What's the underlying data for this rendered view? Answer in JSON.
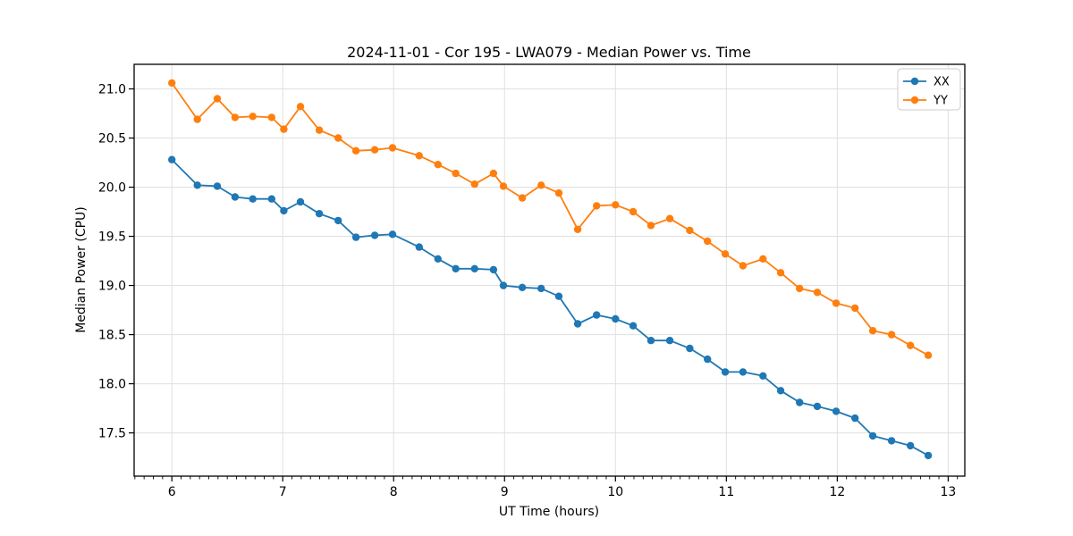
{
  "chart_data": {
    "type": "line",
    "title": "2024-11-01 - Cor 195 - LWA079 - Median Power vs. Time",
    "xlabel": "UT Time (hours)",
    "ylabel": "Median Power (CPU)",
    "xlim": [
      5.66,
      13.15
    ],
    "ylim": [
      17.06,
      21.25
    ],
    "xticks": [
      6,
      7,
      8,
      9,
      10,
      11,
      12,
      13
    ],
    "yticks": [
      17.5,
      18.0,
      18.5,
      19.0,
      19.5,
      20.0,
      20.5,
      21.0
    ],
    "x_minor_tick_step": 0.08333,
    "grid": true,
    "grid_color": "#e0e0e0",
    "legend_position": "upper right",
    "x": [
      6.0,
      6.23,
      6.41,
      6.57,
      6.73,
      6.9,
      7.01,
      7.16,
      7.33,
      7.5,
      7.66,
      7.83,
      7.99,
      8.23,
      8.4,
      8.56,
      8.73,
      8.9,
      8.99,
      9.16,
      9.33,
      9.49,
      9.66,
      9.83,
      10.0,
      10.16,
      10.32,
      10.49,
      10.67,
      10.83,
      10.99,
      11.15,
      11.33,
      11.49,
      11.66,
      11.82,
      11.99,
      12.16,
      12.32,
      12.49,
      12.66,
      12.82
    ],
    "series": [
      {
        "name": "XX",
        "color": "#1f77b4",
        "marker": "circle",
        "values": [
          20.28,
          20.02,
          20.01,
          19.9,
          19.88,
          19.88,
          19.76,
          19.85,
          19.73,
          19.66,
          19.49,
          19.51,
          19.52,
          19.39,
          19.27,
          19.17,
          19.17,
          19.16,
          19.0,
          18.98,
          18.97,
          18.89,
          18.61,
          18.7,
          18.66,
          18.59,
          18.44,
          18.44,
          18.36,
          18.25,
          18.12,
          18.12,
          18.08,
          17.93,
          17.81,
          17.77,
          17.72,
          17.65,
          17.47,
          17.42,
          17.37,
          17.27
        ]
      },
      {
        "name": "YY",
        "color": "#ff7f0e",
        "marker": "circle",
        "values": [
          21.06,
          20.69,
          20.9,
          20.71,
          20.72,
          20.71,
          20.59,
          20.82,
          20.58,
          20.5,
          20.37,
          20.38,
          20.4,
          20.32,
          20.23,
          20.14,
          20.03,
          20.14,
          20.01,
          19.89,
          20.02,
          19.94,
          19.57,
          19.81,
          19.82,
          19.75,
          19.61,
          19.68,
          19.56,
          19.45,
          19.32,
          19.2,
          19.27,
          19.13,
          18.97,
          18.93,
          18.82,
          18.77,
          18.54,
          18.5,
          18.39,
          18.29
        ]
      }
    ]
  }
}
